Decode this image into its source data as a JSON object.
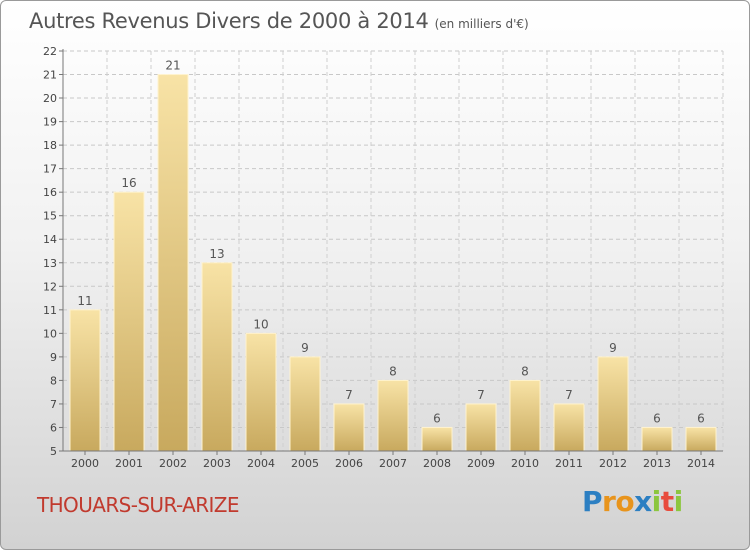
{
  "chart_data": {
    "type": "bar",
    "title": "Autres Revenus Divers de 2000 à 2014",
    "subtitle": "(en milliers d'€)",
    "categories": [
      "2000",
      "2001",
      "2002",
      "2003",
      "2004",
      "2005",
      "2006",
      "2007",
      "2008",
      "2009",
      "2010",
      "2011",
      "2012",
      "2013",
      "2014"
    ],
    "values": [
      11,
      16,
      21,
      13,
      10,
      9,
      7,
      8,
      6,
      7,
      8,
      7,
      9,
      6,
      6
    ],
    "ylim": [
      5,
      22
    ],
    "yticks": [
      5,
      6,
      7,
      8,
      9,
      10,
      11,
      12,
      13,
      14,
      15,
      16,
      17,
      18,
      19,
      20,
      21,
      22
    ],
    "grid": true,
    "bar_color": "#e6c77f"
  },
  "footer": {
    "commune": "THOUARS-SUR-ARIZE",
    "logo_letters": [
      "P",
      "r",
      "o",
      "x",
      "i",
      "t",
      "i"
    ],
    "logo_colors": [
      "#2c7fc2",
      "#e8941c",
      "#e8941c",
      "#2c7fc2",
      "#8cc63e",
      "#e84c3d",
      "#8cc63e"
    ]
  }
}
